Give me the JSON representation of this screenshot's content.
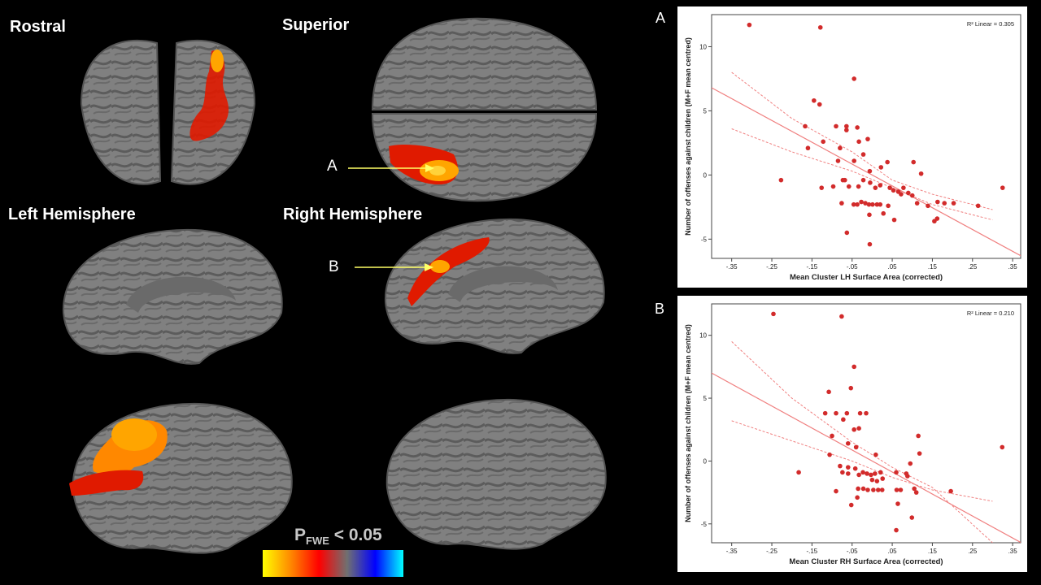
{
  "views": {
    "rostral": "Rostral",
    "superior": "Superior",
    "left_hemisphere": "Left Hemisphere",
    "right_hemisphere": "Right Hemisphere"
  },
  "arrows": {
    "a": "A",
    "b": "B"
  },
  "colorbar": {
    "label_p": "P",
    "label_sub": "FWE",
    "label_rest": " < 0.05",
    "colors": [
      "#ffff00",
      "#ff8800",
      "#ff0000",
      "#707070",
      "#0000ff",
      "#00ffff"
    ]
  },
  "colors": {
    "point": "#d22b2b",
    "fit": "#f08080"
  },
  "chart_data": [
    {
      "panel_letter": "A",
      "type": "scatter",
      "xlabel": "Mean Cluster LH Surface Area (corrected)",
      "ylabel": "Number of offenses against children (M+F mean centred)",
      "r2_label": "R² Linear = 0.305",
      "xlim": [
        -0.4,
        0.37
      ],
      "ylim": [
        -6.5,
        12.5
      ],
      "xticks": [
        -0.35,
        -0.25,
        -0.15,
        -0.05,
        0.05,
        0.15,
        0.25,
        0.35
      ],
      "xtick_labels": [
        "-.35",
        "-.25",
        "-.15",
        "-.05",
        ".05",
        ".15",
        ".25",
        ".35"
      ],
      "yticks": [
        10,
        5,
        0,
        -5
      ],
      "ytick_labels": [
        "10",
        "5",
        "0",
        "-5"
      ],
      "fit": {
        "slope": -17.0,
        "intercept": 0.0
      },
      "ci_lower": [
        [
          -0.35,
          3.6
        ],
        [
          -0.2,
          1.8
        ],
        [
          -0.05,
          0.3
        ],
        [
          0.05,
          -1.0
        ],
        [
          0.15,
          -2.3
        ],
        [
          0.3,
          -3.5
        ]
      ],
      "ci_upper": [
        [
          -0.35,
          8.0
        ],
        [
          -0.2,
          4.4
        ],
        [
          -0.05,
          1.8
        ],
        [
          0.05,
          -0.4
        ],
        [
          0.15,
          -1.5
        ],
        [
          0.3,
          -2.7
        ]
      ],
      "points": [
        [
          -0.306,
          11.7
        ],
        [
          -0.129,
          11.5
        ],
        [
          -0.045,
          7.5
        ],
        [
          -0.145,
          5.8
        ],
        [
          -0.131,
          5.5
        ],
        [
          -0.167,
          3.8
        ],
        [
          -0.09,
          3.8
        ],
        [
          -0.064,
          3.8
        ],
        [
          -0.064,
          3.5
        ],
        [
          -0.037,
          3.7
        ],
        [
          -0.122,
          2.6
        ],
        [
          -0.16,
          2.1
        ],
        [
          -0.08,
          2.1
        ],
        [
          -0.033,
          2.6
        ],
        [
          -0.011,
          2.8
        ],
        [
          -0.085,
          1.1
        ],
        [
          -0.045,
          1.1
        ],
        [
          -0.022,
          1.6
        ],
        [
          0.038,
          1.0
        ],
        [
          0.022,
          0.6
        ],
        [
          0.103,
          1.0
        ],
        [
          0.122,
          0.1
        ],
        [
          -0.006,
          0.3
        ],
        [
          -0.227,
          -0.4
        ],
        [
          -0.126,
          -1.0
        ],
        [
          -0.097,
          -0.9
        ],
        [
          -0.073,
          -0.4
        ],
        [
          -0.068,
          -0.4
        ],
        [
          -0.058,
          -0.9
        ],
        [
          -0.034,
          -0.9
        ],
        [
          -0.022,
          -0.4
        ],
        [
          -0.005,
          -0.6
        ],
        [
          0.008,
          -1.0
        ],
        [
          0.02,
          -0.8
        ],
        [
          0.044,
          -1.0
        ],
        [
          0.053,
          -1.2
        ],
        [
          0.065,
          -1.3
        ],
        [
          0.078,
          -1.0
        ],
        [
          0.09,
          -1.4
        ],
        [
          0.072,
          -1.5
        ],
        [
          0.1,
          -1.6
        ],
        [
          0.112,
          -2.2
        ],
        [
          0.139,
          -2.4
        ],
        [
          0.163,
          -2.1
        ],
        [
          0.18,
          -2.2
        ],
        [
          0.203,
          -2.2
        ],
        [
          0.264,
          -2.4
        ],
        [
          0.325,
          -1.0
        ],
        [
          -0.076,
          -2.2
        ],
        [
          -0.046,
          -2.3
        ],
        [
          -0.037,
          -2.3
        ],
        [
          -0.027,
          -2.1
        ],
        [
          -0.017,
          -2.2
        ],
        [
          -0.008,
          -2.3
        ],
        [
          0.001,
          -2.3
        ],
        [
          0.012,
          -2.3
        ],
        [
          0.02,
          -2.3
        ],
        [
          0.04,
          -2.4
        ],
        [
          0.028,
          -3.0
        ],
        [
          -0.007,
          -3.1
        ],
        [
          0.055,
          -3.5
        ],
        [
          0.162,
          -3.4
        ],
        [
          0.155,
          -3.6
        ],
        [
          -0.063,
          -4.5
        ],
        [
          -0.006,
          -5.4
        ]
      ]
    },
    {
      "panel_letter": "B",
      "type": "scatter",
      "xlabel": "Mean Cluster RH Surface Area (corrected)",
      "ylabel": "Number of offenses against children (M+F mean centred)",
      "r2_label": "R² Linear = 0.210",
      "xlim": [
        -0.4,
        0.37
      ],
      "ylim": [
        -6.5,
        12.5
      ],
      "xticks": [
        -0.35,
        -0.25,
        -0.15,
        -0.05,
        0.05,
        0.15,
        0.25,
        0.35
      ],
      "xtick_labels": [
        "-.35",
        "-.25",
        "-.15",
        "-.05",
        ".05",
        ".15",
        ".25",
        ".35"
      ],
      "yticks": [
        10,
        5,
        0,
        -5
      ],
      "ytick_labels": [
        "10",
        "5",
        "0",
        "-5"
      ],
      "fit": {
        "slope": -17.5,
        "intercept": 0.0
      },
      "ci_lower": [
        [
          -0.35,
          3.2
        ],
        [
          -0.2,
          1.6
        ],
        [
          -0.05,
          0.0
        ],
        [
          0.05,
          -1.3
        ],
        [
          0.15,
          -2.3
        ],
        [
          0.3,
          -3.2
        ]
      ],
      "ci_upper": [
        [
          -0.35,
          9.5
        ],
        [
          -0.2,
          5.0
        ],
        [
          -0.05,
          1.5
        ],
        [
          0.05,
          -0.5
        ],
        [
          0.15,
          -2.1
        ],
        [
          0.3,
          -6.5
        ]
      ],
      "points": [
        [
          -0.246,
          11.7
        ],
        [
          -0.076,
          11.5
        ],
        [
          -0.045,
          7.5
        ],
        [
          -0.053,
          5.8
        ],
        [
          -0.108,
          5.5
        ],
        [
          -0.117,
          3.8
        ],
        [
          -0.09,
          3.8
        ],
        [
          -0.063,
          3.8
        ],
        [
          -0.03,
          3.8
        ],
        [
          -0.015,
          3.8
        ],
        [
          -0.072,
          3.3
        ],
        [
          -0.045,
          2.5
        ],
        [
          -0.033,
          2.6
        ],
        [
          0.115,
          2.0
        ],
        [
          -0.1,
          2.0
        ],
        [
          -0.06,
          1.4
        ],
        [
          -0.04,
          1.1
        ],
        [
          0.009,
          0.5
        ],
        [
          0.118,
          0.6
        ],
        [
          0.324,
          1.1
        ],
        [
          -0.106,
          0.5
        ],
        [
          0.095,
          -0.2
        ],
        [
          -0.08,
          -0.4
        ],
        [
          -0.06,
          -0.5
        ],
        [
          -0.042,
          -0.6
        ],
        [
          -0.023,
          -0.9
        ],
        [
          -0.074,
          -0.9
        ],
        [
          -0.183,
          -0.9
        ],
        [
          -0.013,
          -1.0
        ],
        [
          -0.003,
          -1.1
        ],
        [
          0.007,
          -1.0
        ],
        [
          0.021,
          -0.9
        ],
        [
          0.06,
          -0.9
        ],
        [
          0.085,
          -1.0
        ],
        [
          -0.033,
          -1.1
        ],
        [
          -0.06,
          -1.0
        ],
        [
          0.0,
          -1.5
        ],
        [
          0.012,
          -1.6
        ],
        [
          0.026,
          -1.4
        ],
        [
          0.088,
          -1.2
        ],
        [
          0.105,
          -2.2
        ],
        [
          0.196,
          -2.4
        ],
        [
          0.11,
          -2.5
        ],
        [
          -0.035,
          -2.2
        ],
        [
          -0.022,
          -2.2
        ],
        [
          -0.011,
          -2.3
        ],
        [
          0.003,
          -2.3
        ],
        [
          0.015,
          -2.3
        ],
        [
          0.025,
          -2.3
        ],
        [
          0.061,
          -2.3
        ],
        [
          0.071,
          -2.3
        ],
        [
          -0.09,
          -2.4
        ],
        [
          -0.037,
          -2.9
        ],
        [
          -0.052,
          -3.5
        ],
        [
          0.064,
          -3.4
        ],
        [
          0.099,
          -4.5
        ],
        [
          0.06,
          -5.5
        ]
      ]
    }
  ]
}
